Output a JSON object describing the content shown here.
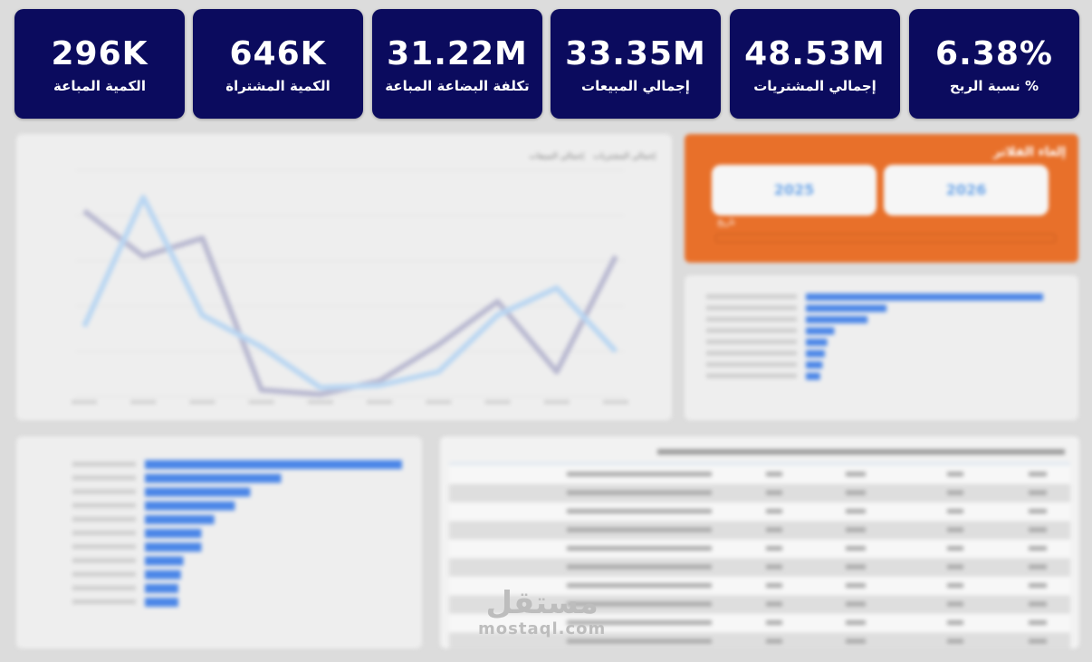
{
  "kpis": [
    {
      "value": "296K",
      "label": "الكمية المباعة"
    },
    {
      "value": "646K",
      "label": "الكمية المشتراة"
    },
    {
      "value": "31.22M",
      "label": "تكلفة البضاعة المباعة"
    },
    {
      "value": "33.35M",
      "label": "إجمالي المبيعات"
    },
    {
      "value": "48.53M",
      "label": "إجمالي المشتريات"
    },
    {
      "value": "6.38%",
      "label": "% نسبة الربح"
    }
  ],
  "filter_panel": {
    "title": "إلغاء الفلاتر",
    "year_buttons": [
      "2025",
      "2026"
    ],
    "slider_label": "تاريخ"
  },
  "line_chart": {
    "legend": [
      "إجمالي المشتريات",
      "إجمالي المبيعات"
    ],
    "colors": {
      "purchases": "#b8b8d0",
      "sales": "#b9d6f2"
    },
    "x_count": 10,
    "series": [
      {
        "name": "purchases",
        "values": [
          0.82,
          0.62,
          0.7,
          0.03,
          0.01,
          0.07,
          0.23,
          0.42,
          0.11,
          0.62
        ]
      },
      {
        "name": "sales",
        "values": [
          0.31,
          0.88,
          0.36,
          0.22,
          0.04,
          0.05,
          0.11,
          0.36,
          0.48,
          0.2
        ]
      }
    ]
  },
  "bar_chart_right": {
    "color": "#4a86e8",
    "values": [
      1.0,
      0.34,
      0.26,
      0.12,
      0.09,
      0.08,
      0.07,
      0.06
    ]
  },
  "bar_chart_left": {
    "color": "#4a86e8",
    "values": [
      1.0,
      0.53,
      0.41,
      0.35,
      0.27,
      0.22,
      0.22,
      0.15,
      0.14,
      0.13,
      0.13
    ]
  },
  "table": {
    "row_count": 10
  },
  "watermark": {
    "arabic": "مستقل",
    "latin": "mostaql.com"
  }
}
